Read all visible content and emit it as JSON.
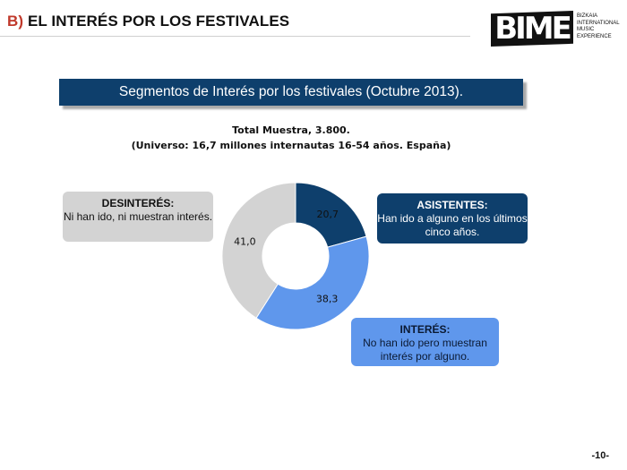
{
  "header": {
    "section_letter": "B)",
    "title": "EL INTERÉS POR LOS FESTIVALES"
  },
  "logo": {
    "mark": "BIME",
    "lines": [
      "BIZKAIA",
      "INTERNATIONAL",
      "MUSIC EXPERIENCE"
    ]
  },
  "subtitle": "Segmentos de Interés por los festivales (Octubre 2013).",
  "sample": {
    "line1": "Total Muestra, 3.800.",
    "line2": "(Universo: 16,7 millones internautas 16-54 años. España)"
  },
  "chart_data": {
    "type": "pie",
    "donut": true,
    "start": "top",
    "direction": "clockwise",
    "slices": [
      {
        "label": "ASISTENTES",
        "value": 20.7,
        "display": "20,7",
        "color": "#0e3f6c"
      },
      {
        "label": "INTERÉS",
        "value": 38.3,
        "display": "38,3",
        "color": "#5f97ec"
      },
      {
        "label": "DESINTERÉS",
        "value": 41.0,
        "display": "41,0",
        "color": "#d3d3d3"
      }
    ]
  },
  "callouts": {
    "desinteres": {
      "title": "DESINTERÉS:",
      "body": "Ni han ido, ni muestran interés."
    },
    "asistentes": {
      "title": "ASISTENTES:",
      "body": "Han ido a alguno en los últimos cinco años."
    },
    "interes": {
      "title": "INTERÉS:",
      "body": "No han ido pero muestran interés por alguno."
    }
  },
  "page_number": "-10-"
}
